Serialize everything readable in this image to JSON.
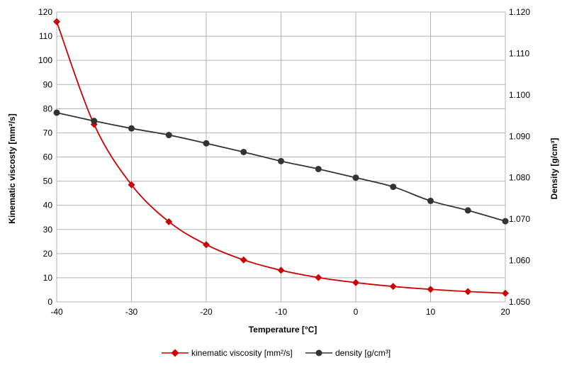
{
  "chart_data": {
    "type": "line",
    "xlabel": "Temperature [°C]",
    "ylabel_left": "Kinematic viscosty  [mm²/s]",
    "ylabel_right": "Density  [g/cm³]",
    "x_ticks": [
      -40,
      -30,
      -20,
      -10,
      0,
      10,
      20
    ],
    "y_left_ticks": [
      0,
      10,
      20,
      30,
      40,
      50,
      60,
      70,
      80,
      90,
      100,
      110,
      120
    ],
    "y_right_ticks": [
      "1.050",
      "1.060",
      "1.070",
      "1.080",
      "1.090",
      "1.100",
      "1.110",
      "1.120"
    ],
    "xlim": [
      -40,
      20
    ],
    "ylim_left": [
      0,
      120
    ],
    "ylim_right": [
      1.05,
      1.12
    ],
    "grid": true,
    "legend_position": "bottom",
    "x": [
      -40,
      -35,
      -30,
      -25,
      -20,
      -15,
      -10,
      -5,
      0,
      5,
      10,
      15,
      20
    ],
    "series": [
      {
        "name": "kinematic viscosity [mm²/s]",
        "axis": "left",
        "color": "#cc0000",
        "marker": "diamond",
        "values": [
          116,
          73.5,
          48.5,
          33.2,
          23.7,
          17.4,
          13.1,
          10.1,
          8.0,
          6.4,
          5.2,
          4.3,
          3.6
        ]
      },
      {
        "name": "density [g/cm³]",
        "axis": "right",
        "color": "#333333",
        "marker": "circle",
        "values": [
          1.0957,
          1.0937,
          1.0919,
          1.0903,
          1.0883,
          1.0862,
          1.084,
          1.0821,
          1.08,
          1.0778,
          1.0744,
          1.0721,
          1.0695
        ]
      }
    ]
  }
}
